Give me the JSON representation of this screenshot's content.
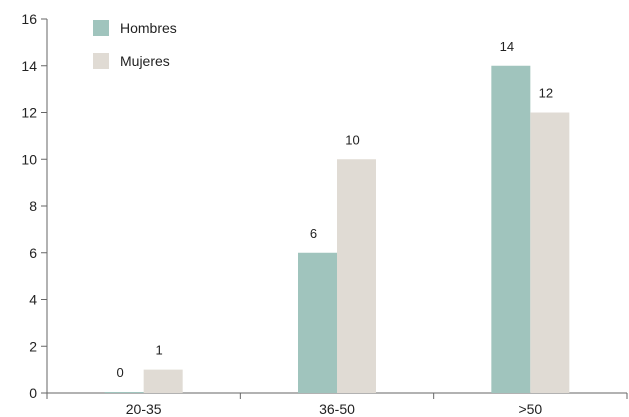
{
  "chart_data": {
    "type": "bar",
    "categories": [
      "20-35",
      "36-50",
      ">50"
    ],
    "series": [
      {
        "name": "Hombres",
        "values": [
          0,
          6,
          14
        ],
        "color": "#a0c4bd"
      },
      {
        "name": "Mujeres",
        "values": [
          1,
          10,
          12
        ],
        "color": "#e0dbd4"
      }
    ],
    "title": "",
    "xlabel": "",
    "ylabel": "",
    "ylim": [
      0,
      16
    ],
    "yticks": [
      0,
      2,
      4,
      6,
      8,
      10,
      12,
      14,
      16
    ],
    "grid": false,
    "legend_position": "top-left",
    "axis_color": "#666666"
  }
}
